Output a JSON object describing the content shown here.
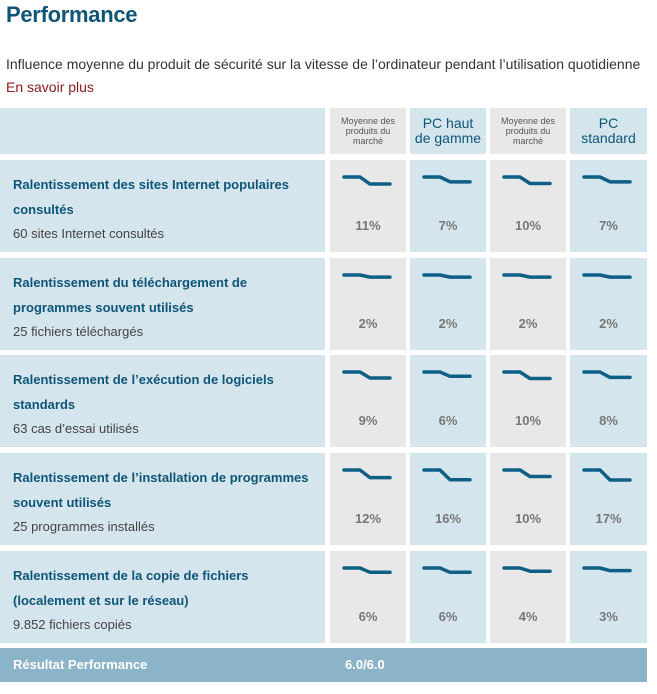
{
  "header": {
    "title": "Performance",
    "subtitle": "Influence moyenne du produit de sécurité sur la vitesse de l’ordinateur pendant l’utilisation quotidienne",
    "learn_more": "En savoir plus"
  },
  "columns": [
    {
      "label": "Moyenne des produits du marché",
      "style": "small"
    },
    {
      "label": "PC haut de gamme",
      "style": "big"
    },
    {
      "label": "Moyenne des produits du marché",
      "style": "small"
    },
    {
      "label": "PC standard",
      "style": "big"
    }
  ],
  "rows": [
    {
      "title": "Ralentissement des sites Internet populaires consultés",
      "subtitle": "60 sites Internet consultés",
      "values": [
        "11%",
        "7%",
        "10%",
        "7%"
      ],
      "levels": [
        11,
        7,
        10,
        7
      ]
    },
    {
      "title": "Ralentissement du téléchargement de programmes souvent utilisés",
      "subtitle": "25 fichiers téléchargés",
      "values": [
        "2%",
        "2%",
        "2%",
        "2%"
      ],
      "levels": [
        2,
        2,
        2,
        2
      ]
    },
    {
      "title": "Ralentissement de l’exécution de logiciels standards",
      "subtitle": "63 cas d’essai utilisés",
      "values": [
        "9%",
        "6%",
        "10%",
        "8%"
      ],
      "levels": [
        9,
        6,
        10,
        8
      ]
    },
    {
      "title": "Ralentissement de l’installation de programmes souvent utilisés",
      "subtitle": "25 programmes installés",
      "values": [
        "12%",
        "16%",
        "10%",
        "17%"
      ],
      "levels": [
        12,
        16,
        10,
        17
      ]
    },
    {
      "title": "Ralentissement de la copie de fichiers (localement et sur le réseau)",
      "subtitle": "9.852 fichiers copiés",
      "values": [
        "6%",
        "6%",
        "4%",
        "3%"
      ],
      "levels": [
        6,
        6,
        4,
        3
      ]
    }
  ],
  "footer": {
    "label": "Résultat Performance",
    "score": "6.0/6.0"
  },
  "colors": {
    "title": "#0e5577",
    "link": "#8b1a1a",
    "row_bg": "#d5e5ee",
    "market_col_bg": "#e8e8e8",
    "line": "#0e5f86",
    "footer_bg": "#8cb4c9"
  }
}
